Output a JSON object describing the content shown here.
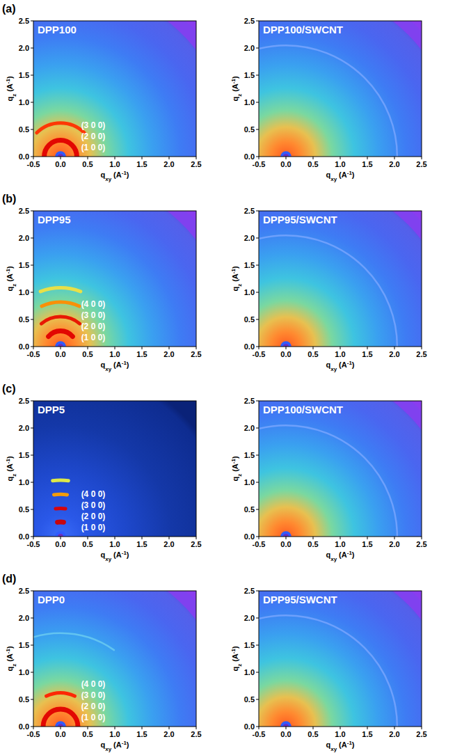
{
  "panel_labels": [
    "(a)",
    "(b)",
    "(c)",
    "(d)"
  ],
  "chart_data": [
    {
      "type": "scattering_image",
      "title": "DPP100",
      "color": "#5a55e8",
      "xlabel": {
        "main": "q",
        "sub": "xy",
        "unit": "(A",
        "sup": "-1",
        "end": ")"
      },
      "ylabel": {
        "main": "q",
        "sub": "z",
        "unit": "(A",
        "sup": "-1",
        "end": ")"
      },
      "xlim": [
        -0.5,
        2.5
      ],
      "ylim": [
        0,
        2.5
      ],
      "xticks": [
        -0.5,
        {
          "value": 0,
          "label": "0.0"
        },
        0.5,
        {
          "value": 1,
          "label": "1.0"
        },
        1.5,
        {
          "value": 2,
          "label": "2.0"
        },
        2.5
      ],
      "yticks": [
        {
          "value": 0,
          "label": "0.0"
        },
        0.5,
        {
          "value": 1,
          "label": "1.0"
        },
        1.5,
        {
          "value": 2,
          "label": "2.0"
        },
        2.5
      ],
      "annotations": [
        "(1 0 0)",
        "(2 0 0)",
        "(3 0 0)"
      ],
      "peaks": [
        {
          "q": 0.3,
          "spread": 90,
          "color": "#e00000"
        },
        {
          "q": 0.62,
          "spread": 45,
          "color": "#ff3000"
        }
      ]
    },
    {
      "type": "scattering_image",
      "title": "DPP100/SWCNT",
      "color": "#5a55e8",
      "xlabel": {
        "main": "q",
        "sub": "xy",
        "unit": "(A",
        "sup": "-1",
        "end": ")"
      },
      "ylabel": {
        "main": "q",
        "sub": "z",
        "unit": "(A",
        "sup": "-1",
        "end": ")"
      },
      "xlim": [
        -0.5,
        2.5
      ],
      "ylim": [
        0,
        2.5
      ],
      "xticks": [
        -0.5,
        {
          "value": 0,
          "label": "0.0"
        },
        0.5,
        {
          "value": 1,
          "label": "1.0"
        },
        1.5,
        {
          "value": 2,
          "label": "2.0"
        },
        2.5
      ],
      "yticks": [
        {
          "value": 0,
          "label": "0.0"
        },
        0.5,
        {
          "value": 1,
          "label": "1.0"
        },
        1.5,
        {
          "value": 2,
          "label": "2.0"
        },
        2.5
      ],
      "peaks": [
        {
          "q": 2.05,
          "spread": 90,
          "color": "#7fa8ff"
        }
      ]
    },
    {
      "type": "scattering_image",
      "title": "DPP95",
      "color": "#5a55e8",
      "xlabel": {
        "main": "q",
        "sub": "xy",
        "unit": "(A",
        "sup": "-1",
        "end": ")"
      },
      "ylabel": {
        "main": "q",
        "sub": "z",
        "unit": "(A",
        "sup": "-1",
        "end": ")"
      },
      "xlim": [
        -0.5,
        2.5
      ],
      "ylim": [
        0,
        2.5
      ],
      "xticks": [
        -0.5,
        {
          "value": 0,
          "label": "0.0"
        },
        0.5,
        {
          "value": 1,
          "label": "1.0"
        },
        1.5,
        {
          "value": 2,
          "label": "2.0"
        },
        2.5
      ],
      "yticks": [
        {
          "value": 0,
          "label": "0.0"
        },
        0.5,
        {
          "value": 1,
          "label": "1.0"
        },
        1.5,
        {
          "value": 2,
          "label": "2.0"
        },
        2.5
      ],
      "annotations": [
        "(1 0 0)",
        "(2 0 0)",
        "(3 0 0)",
        "(4 0 0)"
      ],
      "peaks": [
        {
          "q": 0.29,
          "spread": 50,
          "color": "#e00000"
        },
        {
          "q": 0.55,
          "spread": 40,
          "color": "#e81000"
        },
        {
          "q": 0.82,
          "spread": 25,
          "color": "#ff8c00"
        },
        {
          "q": 1.08,
          "spread": 20,
          "color": "#f0e040"
        }
      ]
    },
    {
      "type": "scattering_image",
      "title": "DPP95/SWCNT",
      "color": "#5a55e8",
      "xlabel": {
        "main": "q",
        "sub": "xy",
        "unit": "(A",
        "sup": "-1",
        "end": ")"
      },
      "ylabel": {
        "main": "q",
        "sub": "z",
        "unit": "(A",
        "sup": "-1",
        "end": ")"
      },
      "xlim": [
        -0.5,
        2.5
      ],
      "ylim": [
        0,
        2.5
      ],
      "xticks": [
        -0.5,
        {
          "value": 0,
          "label": "0.0"
        },
        0.5,
        {
          "value": 1,
          "label": "1.0"
        },
        1.5,
        {
          "value": 2,
          "label": "2.0"
        },
        2.5
      ],
      "yticks": [
        {
          "value": 0,
          "label": "0.0"
        },
        0.5,
        {
          "value": 1,
          "label": "1.0"
        },
        1.5,
        {
          "value": 2,
          "label": "2.0"
        },
        2.5
      ],
      "peaks": [
        {
          "q": 2.05,
          "spread": 90,
          "color": "#7fa8ff"
        }
      ]
    },
    {
      "type": "scattering_image",
      "title": "DPP5",
      "color": "#0a2278",
      "xlabel": {
        "main": "q",
        "sub": "xy",
        "unit": "(A",
        "sup": "-1",
        "end": ")"
      },
      "ylabel": {
        "main": "q",
        "sub": "z",
        "unit": "(A",
        "sup": "-1",
        "end": ")"
      },
      "xlim": [
        -0.5,
        2.5
      ],
      "ylim": [
        0,
        2.5
      ],
      "xticks": [
        -0.5,
        {
          "value": 0,
          "label": "0.0"
        },
        0.5,
        {
          "value": 1,
          "label": "1.0"
        },
        1.5,
        {
          "value": 2,
          "label": "2.0"
        },
        2.5
      ],
      "yticks": [
        {
          "value": 0,
          "label": "0.0"
        },
        0.5,
        {
          "value": 1,
          "label": "1.0"
        },
        1.5,
        {
          "value": 2,
          "label": "2.0"
        },
        2.5
      ],
      "annotations": [
        "(1 0 0)",
        "(2 0 0)",
        "(3 0 0)",
        "(4 0 0)"
      ],
      "peaks": [
        {
          "q": 0.27,
          "spread": 12,
          "color": "#d00000"
        },
        {
          "q": 0.52,
          "spread": 10,
          "color": "#e00000"
        },
        {
          "q": 0.78,
          "spread": 9,
          "color": "#ffa000"
        },
        {
          "q": 1.04,
          "spread": 8,
          "color": "#e8f040"
        }
      ]
    },
    {
      "type": "scattering_image",
      "title": "DPP100/SWCNT",
      "color": "#5a55e8",
      "xlabel": {
        "main": "q",
        "sub": "xy",
        "unit": "(A",
        "sup": "-1",
        "end": ")"
      },
      "ylabel": {
        "main": "q",
        "sub": "z",
        "unit": "(A",
        "sup": "-1",
        "end": ")"
      },
      "xlim": [
        -0.5,
        2.5
      ],
      "ylim": [
        0,
        2.5
      ],
      "xticks": [
        -0.5,
        {
          "value": 0,
          "label": "0.0"
        },
        0.5,
        {
          "value": 1,
          "label": "1.0"
        },
        1.5,
        {
          "value": 2,
          "label": "2.0"
        },
        2.5
      ],
      "yticks": [
        {
          "value": 0,
          "label": "0.0"
        },
        0.5,
        {
          "value": 1,
          "label": "1.0"
        },
        1.5,
        {
          "value": 2,
          "label": "2.0"
        },
        2.5
      ],
      "peaks": [
        {
          "q": 2.05,
          "spread": 90,
          "color": "#7fa8ff"
        }
      ]
    },
    {
      "type": "scattering_image",
      "title": "DPP0",
      "color": "#5a55e8",
      "xlabel": {
        "main": "q",
        "sub": "xy",
        "unit": "(A",
        "sup": "-1",
        "end": ")"
      },
      "ylabel": {
        "main": "q",
        "sub": "z",
        "unit": "(A",
        "sup": "-1",
        "end": ")"
      },
      "xlim": [
        -0.5,
        2.5
      ],
      "ylim": [
        0,
        2.5
      ],
      "xticks": [
        -0.5,
        {
          "value": 0,
          "label": "0.0"
        },
        0.5,
        {
          "value": 1,
          "label": "1.0"
        },
        1.5,
        {
          "value": 2,
          "label": "2.0"
        },
        2.5
      ],
      "yticks": [
        {
          "value": 0,
          "label": "0.0"
        },
        0.5,
        {
          "value": 1,
          "label": "1.0"
        },
        1.5,
        {
          "value": 2,
          "label": "2.0"
        },
        2.5
      ],
      "annotations": [
        "(1 0 0)",
        "(2 0 0)",
        "(3 0 0)",
        "(4 0 0)"
      ],
      "peaks": [
        {
          "q": 0.32,
          "spread": 90,
          "color": "#e00000"
        },
        {
          "q": 0.62,
          "spread": 25,
          "color": "#ff2000"
        },
        {
          "q": 1.72,
          "spread": 35,
          "color": "#70d0f0"
        }
      ]
    },
    {
      "type": "scattering_image",
      "title": "DPP95/SWCNT",
      "color": "#5a55e8",
      "xlabel": {
        "main": "q",
        "sub": "xy",
        "unit": "(A",
        "sup": "-1",
        "end": ")"
      },
      "ylabel": {
        "main": "q",
        "sub": "z",
        "unit": "(A",
        "sup": "-1",
        "end": ")"
      },
      "xlim": [
        -0.5,
        2.5
      ],
      "ylim": [
        0,
        2.5
      ],
      "xticks": [
        -0.5,
        {
          "value": 0,
          "label": "0.0"
        },
        0.5,
        {
          "value": 1,
          "label": "1.0"
        },
        1.5,
        {
          "value": 2,
          "label": "2.0"
        },
        2.5
      ],
      "yticks": [
        {
          "value": 0,
          "label": "0.0"
        },
        0.5,
        {
          "value": 1,
          "label": "1.0"
        },
        1.5,
        {
          "value": 2,
          "label": "2.0"
        },
        2.5
      ],
      "peaks": [
        {
          "q": 2.05,
          "spread": 90,
          "color": "#7fa8ff"
        }
      ]
    }
  ]
}
